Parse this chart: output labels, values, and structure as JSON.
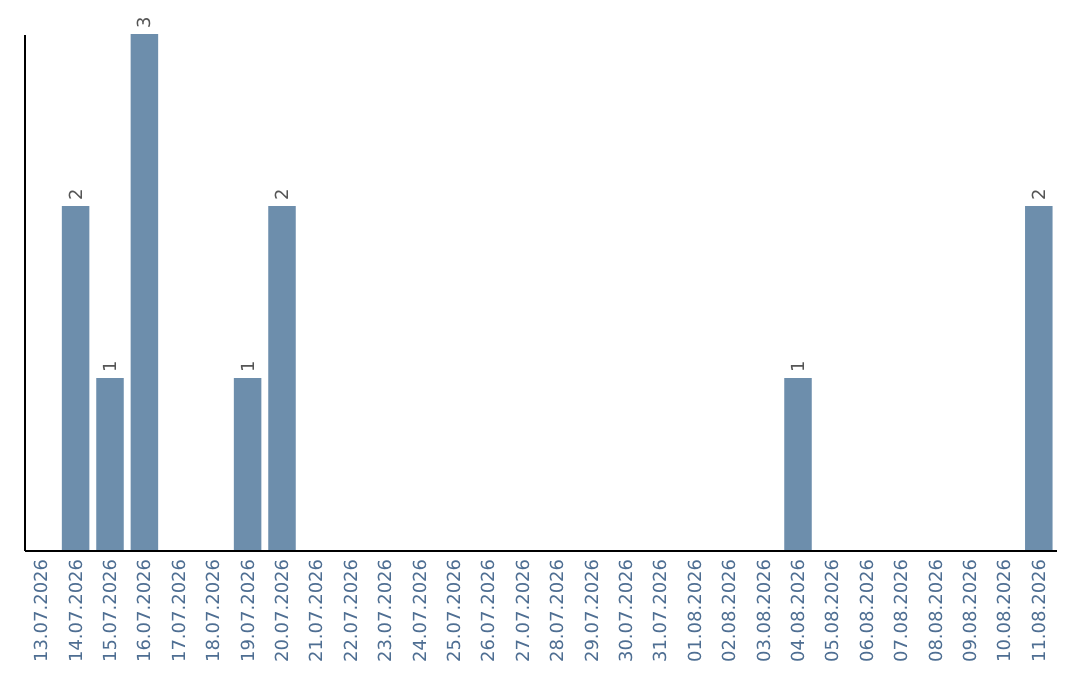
{
  "chart_data": {
    "type": "bar",
    "categories": [
      "13.07.2026",
      "14.07.2026",
      "15.07.2026",
      "16.07.2026",
      "17.07.2026",
      "18.07.2026",
      "19.07.2026",
      "20.07.2026",
      "21.07.2026",
      "22.07.2026",
      "23.07.2026",
      "24.07.2026",
      "25.07.2026",
      "26.07.2026",
      "27.07.2026",
      "28.07.2026",
      "29.07.2026",
      "30.07.2026",
      "31.07.2026",
      "01.08.2026",
      "02.08.2026",
      "03.08.2026",
      "04.08.2026",
      "05.08.2026",
      "06.08.2026",
      "07.08.2026",
      "08.08.2026",
      "09.08.2026",
      "10.08.2026",
      "11.08.2026"
    ],
    "values": [
      0,
      2,
      1,
      3,
      0,
      0,
      1,
      2,
      0,
      0,
      0,
      0,
      0,
      0,
      0,
      0,
      0,
      0,
      0,
      0,
      0,
      0,
      1,
      0,
      0,
      0,
      0,
      0,
      0,
      2
    ],
    "value_labels": [
      null,
      "2",
      "1",
      "3",
      null,
      null,
      "1",
      "2",
      null,
      null,
      null,
      null,
      null,
      null,
      null,
      null,
      null,
      null,
      null,
      null,
      null,
      null,
      "1",
      null,
      null,
      null,
      null,
      null,
      null,
      "2"
    ],
    "color": "#6d8eac",
    "ylim": [
      0,
      3
    ],
    "tick_labels": "x",
    "grid": false
  }
}
